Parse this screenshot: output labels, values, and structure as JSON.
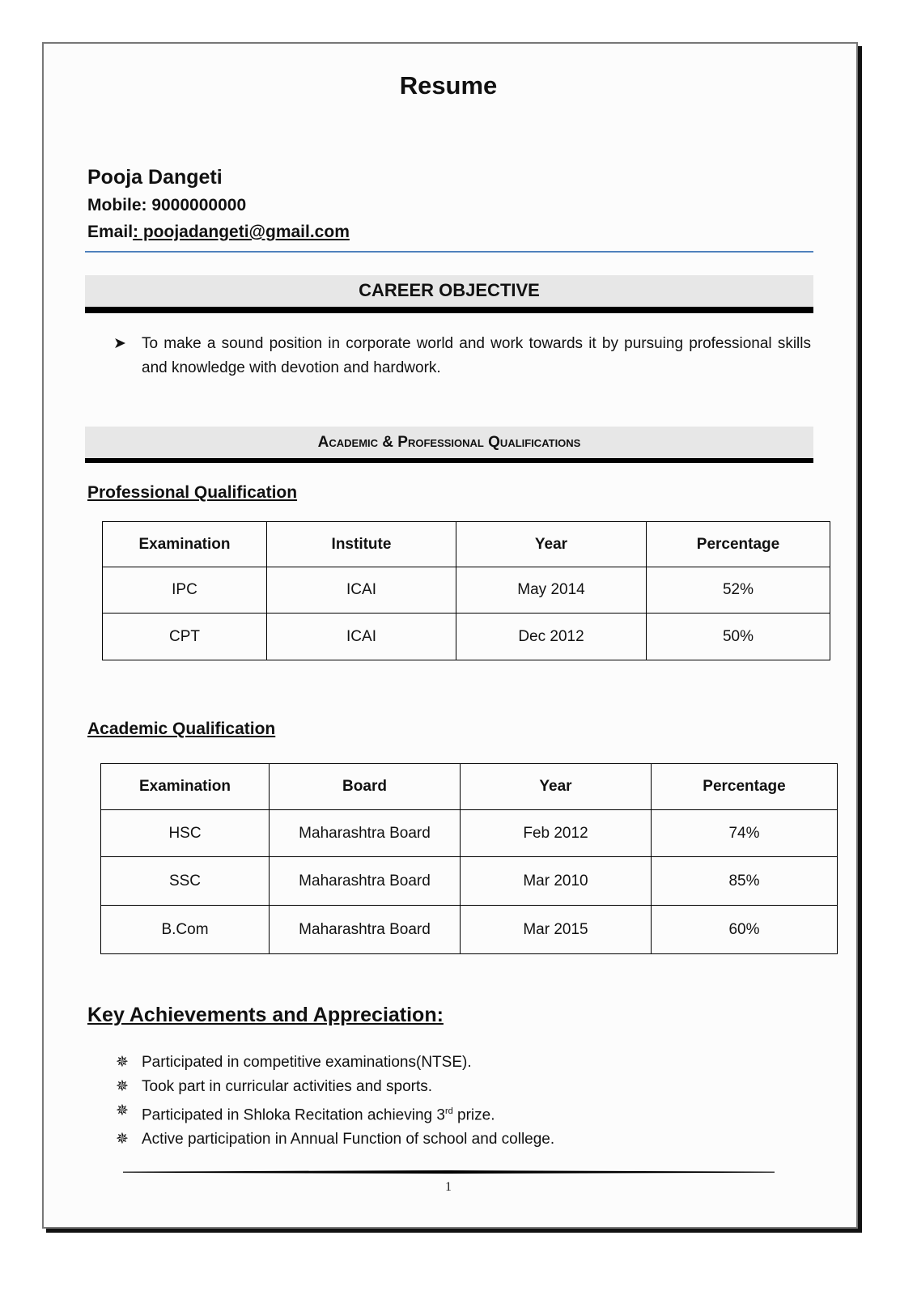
{
  "title": "Resume",
  "contact": {
    "name": "Pooja Dangeti",
    "mobile_label": "Mobile: ",
    "mobile": "9000000000",
    "email_label": "Email",
    "email": ": poojadangeti@gmail.com"
  },
  "career": {
    "heading": "CAREER OBJECTIVE",
    "bullet": "To make a sound position in corporate world and work towards it by pursuing professional skills and knowledge with devotion and hardwork."
  },
  "qualifications": {
    "heading": "Academic & Professional Qualifications",
    "professional": {
      "title": "Professional Qualification",
      "headers": [
        "Examination",
        "Institute",
        "Year",
        "Percentage"
      ],
      "rows": [
        [
          "IPC",
          "ICAI",
          "May 2014",
          "52%"
        ],
        [
          "CPT",
          "ICAI",
          "Dec 2012",
          "50%"
        ]
      ]
    },
    "academic": {
      "title": "Academic Qualification",
      "headers": [
        "Examination",
        "Board",
        "Year",
        "Percentage"
      ],
      "rows": [
        [
          "HSC",
          "Maharashtra Board",
          "Feb 2012",
          "74%"
        ],
        [
          "SSC",
          "Maharashtra Board",
          "Mar 2010",
          "85%"
        ],
        [
          "B.Com",
          "Maharashtra Board",
          "Mar 2015",
          "60%"
        ]
      ]
    }
  },
  "achievements": {
    "heading": "Key Achievements and Appreciation:",
    "items": [
      "Participated in competitive examinations(NTSE).",
      "Took part in curricular activities and sports.",
      "Participated in Shloka Recitation achieving 3",
      "Active participation in Annual Function of school and college."
    ],
    "item3_sup": "rd",
    "item3_tail": " prize."
  },
  "footer": {
    "page_number": "1"
  },
  "icons": {
    "career_bullet": "arrow-bullet-icon",
    "achievement_bullet": "star-bullet-icon"
  }
}
